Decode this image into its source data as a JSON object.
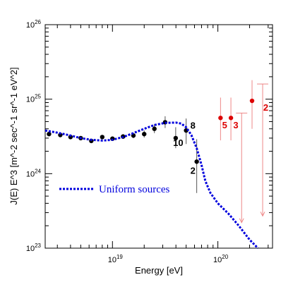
{
  "chart_data": {
    "type": "scatter",
    "title": "",
    "xlabel": "Energy [eV]",
    "ylabel": "J(E) E^3 [m^-2 sec^-1 sr^-1 eV^2]",
    "xscale": "log",
    "yscale": "log",
    "xlim": [
      2.3e+18,
      3.3e+20
    ],
    "ylim": [
      1e+23,
      1e+26
    ],
    "grid": false,
    "x_tick_labels": [
      {
        "base": "10",
        "exp": "19",
        "value": 1e+19
      },
      {
        "base": "10",
        "exp": "20",
        "value": 1e+20
      }
    ],
    "y_tick_labels": [
      {
        "base": "10",
        "exp": "23",
        "value": 1e+23
      },
      {
        "base": "10",
        "exp": "24",
        "value": 1e+24
      },
      {
        "base": "10",
        "exp": "25",
        "value": 1e+25
      },
      {
        "base": "10",
        "exp": "26",
        "value": 1e+26
      }
    ],
    "legend": {
      "position": "bottom-left",
      "label": "Uniform sources",
      "color": "#0000dd",
      "style": "dotted"
    },
    "series": [
      {
        "kind": "points",
        "color": "#000000",
        "points": [
          {
            "x": 2.5e+18,
            "y": 3.4e+24,
            "lo": 3.2e+24,
            "hi": 3.6e+24
          },
          {
            "x": 3.2e+18,
            "y": 3.3e+24,
            "lo": 3.15e+24,
            "hi": 3.45e+24
          },
          {
            "x": 4e+18,
            "y": 3.1e+24,
            "lo": 2.95e+24,
            "hi": 3.25e+24
          },
          {
            "x": 5e+18,
            "y": 3e+24,
            "lo": 2.85e+24,
            "hi": 3.15e+24
          },
          {
            "x": 6.3e+18,
            "y": 2.75e+24,
            "lo": 2.6e+24,
            "hi": 2.9e+24
          },
          {
            "x": 8e+18,
            "y": 3.1e+24,
            "lo": 2.95e+24,
            "hi": 3.3e+24
          },
          {
            "x": 1e+19,
            "y": 2.95e+24,
            "lo": 2.75e+24,
            "hi": 3.15e+24
          },
          {
            "x": 1.26e+19,
            "y": 3.15e+24,
            "lo": 2.95e+24,
            "hi": 3.4e+24
          },
          {
            "x": 1.58e+19,
            "y": 3.25e+24,
            "lo": 3e+24,
            "hi": 3.5e+24
          },
          {
            "x": 2e+19,
            "y": 3.4e+24,
            "lo": 3.05e+24,
            "hi": 3.8e+24
          },
          {
            "x": 2.5e+19,
            "y": 4e+24,
            "lo": 3.5e+24,
            "hi": 4.6e+24
          },
          {
            "x": 3.16e+19,
            "y": 4.9e+24,
            "lo": 4.1e+24,
            "hi": 5.9e+24
          },
          {
            "x": 3.98e+19,
            "y": 3e+24,
            "lo": 2.2e+24,
            "hi": 4.2e+24
          },
          {
            "x": 5e+19,
            "y": 3.8e+24,
            "lo": 2.5e+24,
            "hi": 5.5e+24
          },
          {
            "x": 6.3e+19,
            "y": 1.45e+24,
            "lo": 5.5e+23,
            "hi": 2.9e+24
          }
        ]
      },
      {
        "kind": "points",
        "color": "#dd0000",
        "points": [
          {
            "x": 1.06e+20,
            "y": 5.6e+24,
            "lo": 2.8e+24,
            "hi": 1.05e+25
          },
          {
            "x": 1.33e+20,
            "y": 5.6e+24,
            "lo": 2.8e+24,
            "hi": 1.05e+25
          },
          {
            "x": 2.11e+20,
            "y": 9.5e+24,
            "lo": 4e+24,
            "hi": 1.8e+25
          }
        ]
      },
      {
        "kind": "upper_limits",
        "color": "#dd0000",
        "points": [
          {
            "x": 1.68e+20,
            "y": 6.5e+24,
            "to": 2.2e+23
          },
          {
            "x": 2.66e+20,
            "y": 1.6e+25,
            "to": 2.7e+23
          }
        ]
      },
      {
        "kind": "line",
        "name": "Uniform sources",
        "color": "#0000dd",
        "style": "dotted",
        "points": [
          {
            "x": 2.3e+18,
            "y": 3.8e+24
          },
          {
            "x": 3e+18,
            "y": 3.55e+24
          },
          {
            "x": 4e+18,
            "y": 3.25e+24
          },
          {
            "x": 5e+18,
            "y": 3e+24
          },
          {
            "x": 6.3e+18,
            "y": 2.85e+24
          },
          {
            "x": 8e+18,
            "y": 2.78e+24
          },
          {
            "x": 1e+19,
            "y": 2.85e+24
          },
          {
            "x": 1.26e+19,
            "y": 3.1e+24
          },
          {
            "x": 1.58e+19,
            "y": 3.5e+24
          },
          {
            "x": 2e+19,
            "y": 4e+24
          },
          {
            "x": 2.5e+19,
            "y": 4.5e+24
          },
          {
            "x": 3.16e+19,
            "y": 4.8e+24
          },
          {
            "x": 4e+19,
            "y": 4.85e+24
          },
          {
            "x": 4.5e+19,
            "y": 4.7e+24
          },
          {
            "x": 5e+19,
            "y": 4.2e+24
          },
          {
            "x": 5.6e+19,
            "y": 3.3e+24
          },
          {
            "x": 6.3e+19,
            "y": 2.2e+24
          },
          {
            "x": 7e+19,
            "y": 1.3e+24
          },
          {
            "x": 7.6e+19,
            "y": 8e+23
          },
          {
            "x": 8.5e+19,
            "y": 5.5e+23
          },
          {
            "x": 1e+20,
            "y": 4e+23
          },
          {
            "x": 1.26e+20,
            "y": 2.9e+23
          },
          {
            "x": 1.58e+20,
            "y": 2e+23
          },
          {
            "x": 2e+20,
            "y": 1.3e+23
          },
          {
            "x": 2.4e+20,
            "y": 1e+23
          }
        ]
      }
    ],
    "annotations": [
      {
        "text": "10",
        "x": 4.2e+19,
        "y": 2.35e+24,
        "color": "#000000"
      },
      {
        "text": "8",
        "x": 5.8e+19,
        "y": 4e+24,
        "color": "#000000"
      },
      {
        "text": "2",
        "x": 5.8e+19,
        "y": 1e+24,
        "color": "#000000"
      },
      {
        "text": "5",
        "x": 1.16e+20,
        "y": 4.05e+24,
        "color": "#dd0000"
      },
      {
        "text": "3",
        "x": 1.48e+20,
        "y": 4.05e+24,
        "color": "#dd0000"
      },
      {
        "text": "2",
        "x": 2.85e+20,
        "y": 7e+24,
        "color": "#dd0000"
      }
    ]
  }
}
